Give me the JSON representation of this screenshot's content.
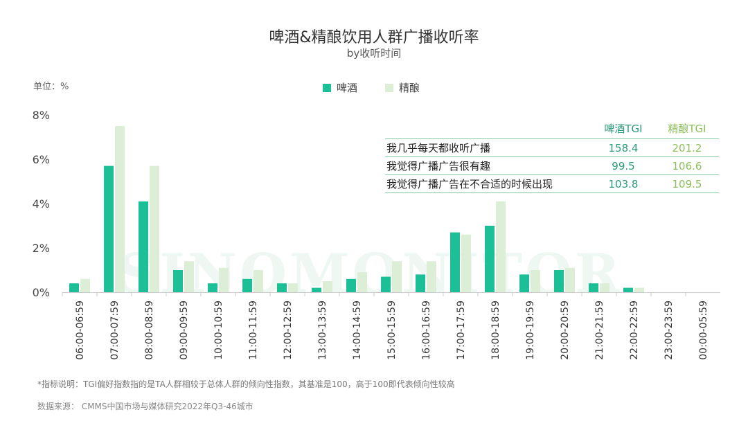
{
  "header": {
    "title": "啤酒&精酿饮用人群广播收听率",
    "subtitle": "by收听时间",
    "unit": "单位：%"
  },
  "colors": {
    "beer": "#1dbf97",
    "craft": "#dcefd6",
    "beer_text": "#2a9a7a",
    "craft_text": "#8cbf5a"
  },
  "chart_data": {
    "type": "bar",
    "categories": [
      "06:00-06:59",
      "07:00-07:59",
      "08:00-08:59",
      "09:00-09:59",
      "10:00-10:59",
      "11:00-11:59",
      "12:00-12:59",
      "13:00-13:59",
      "14:00-14:59",
      "15:00-15:59",
      "16:00-16:59",
      "17:00-17:59",
      "18:00-18:59",
      "19:00-19:59",
      "20:00-20:59",
      "21:00-21:59",
      "22:00-22:59",
      "23:00-23:59",
      "00:00-05:59"
    ],
    "series": [
      {
        "name": "啤酒",
        "values": [
          0.4,
          5.7,
          4.1,
          1.0,
          0.4,
          0.6,
          0.4,
          0.2,
          0.6,
          0.7,
          0.8,
          2.7,
          3.0,
          0.8,
          1.0,
          0.4,
          0.2,
          0,
          0
        ]
      },
      {
        "name": "精酿",
        "values": [
          0.6,
          7.5,
          5.7,
          1.4,
          1.1,
          1.0,
          0.4,
          0.5,
          0.9,
          1.4,
          1.4,
          2.6,
          4.1,
          1.0,
          1.1,
          0.4,
          0.2,
          0,
          0
        ]
      }
    ],
    "yticks": [
      "0%",
      "2%",
      "4%",
      "6%",
      "8%"
    ],
    "ylim": [
      0,
      8
    ],
    "legend_position": "top"
  },
  "tgi_table": {
    "headers": [
      "啤酒TGI",
      "精酿TGI"
    ],
    "rows": [
      {
        "label": "我几乎每天都收听广播",
        "beer": "158.4",
        "craft": "201.2"
      },
      {
        "label": "我觉得广播广告很有趣",
        "beer": "99.5",
        "craft": "106.6"
      },
      {
        "label": "我觉得广播广告在不合适的时候出现",
        "beer": "103.8",
        "craft": "109.5"
      }
    ]
  },
  "watermark": "SINOMONITOR",
  "footnote": "*指标说明：TGI偏好指数指的是TA人群相较于总体人群的倾向性指数，其基准是100，高于100即代表倾向性较高",
  "source": "数据来源： CMMS中国市场与媒体研究2022年Q3-46城市"
}
